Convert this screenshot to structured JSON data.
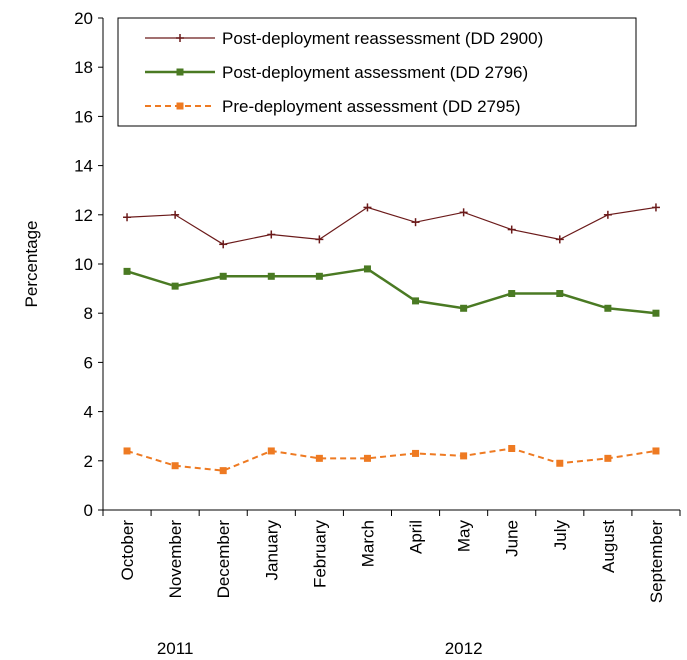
{
  "chart_data": {
    "type": "line",
    "title": "",
    "ylabel": "Percentage",
    "xlabel": "",
    "ylim": [
      0,
      20
    ],
    "yticks": [
      0,
      2,
      4,
      6,
      8,
      10,
      12,
      14,
      16,
      18,
      20
    ],
    "categories": [
      "October",
      "November",
      "December",
      "January",
      "February",
      "March",
      "April",
      "May",
      "June",
      "July",
      "August",
      "September"
    ],
    "year_groups": [
      {
        "label": "2011",
        "start": 0,
        "end": 2
      },
      {
        "label": "2012",
        "start": 3,
        "end": 11
      }
    ],
    "legend_position": "top",
    "grid": false,
    "series": [
      {
        "name": "Post-deployment reassessment (DD 2900)",
        "color": "#6b1a1a",
        "marker": "plus",
        "dash": "solid",
        "values": [
          11.9,
          12.0,
          10.8,
          11.2,
          11.0,
          12.3,
          11.7,
          12.1,
          11.4,
          11.0,
          12.0,
          12.3
        ]
      },
      {
        "name": "Post-deployment assessment (DD 2796)",
        "color": "#4a7a23",
        "marker": "square",
        "dash": "solid",
        "values": [
          9.7,
          9.1,
          9.5,
          9.5,
          9.5,
          9.8,
          8.5,
          8.2,
          8.8,
          8.8,
          8.2,
          8.0
        ]
      },
      {
        "name": "Pre-deployment assessment (DD 2795)",
        "color": "#ee7a22",
        "marker": "square",
        "dash": "dashed",
        "values": [
          2.4,
          1.8,
          1.6,
          2.4,
          2.1,
          2.1,
          2.3,
          2.2,
          2.5,
          1.9,
          2.1,
          2.4
        ]
      }
    ]
  }
}
